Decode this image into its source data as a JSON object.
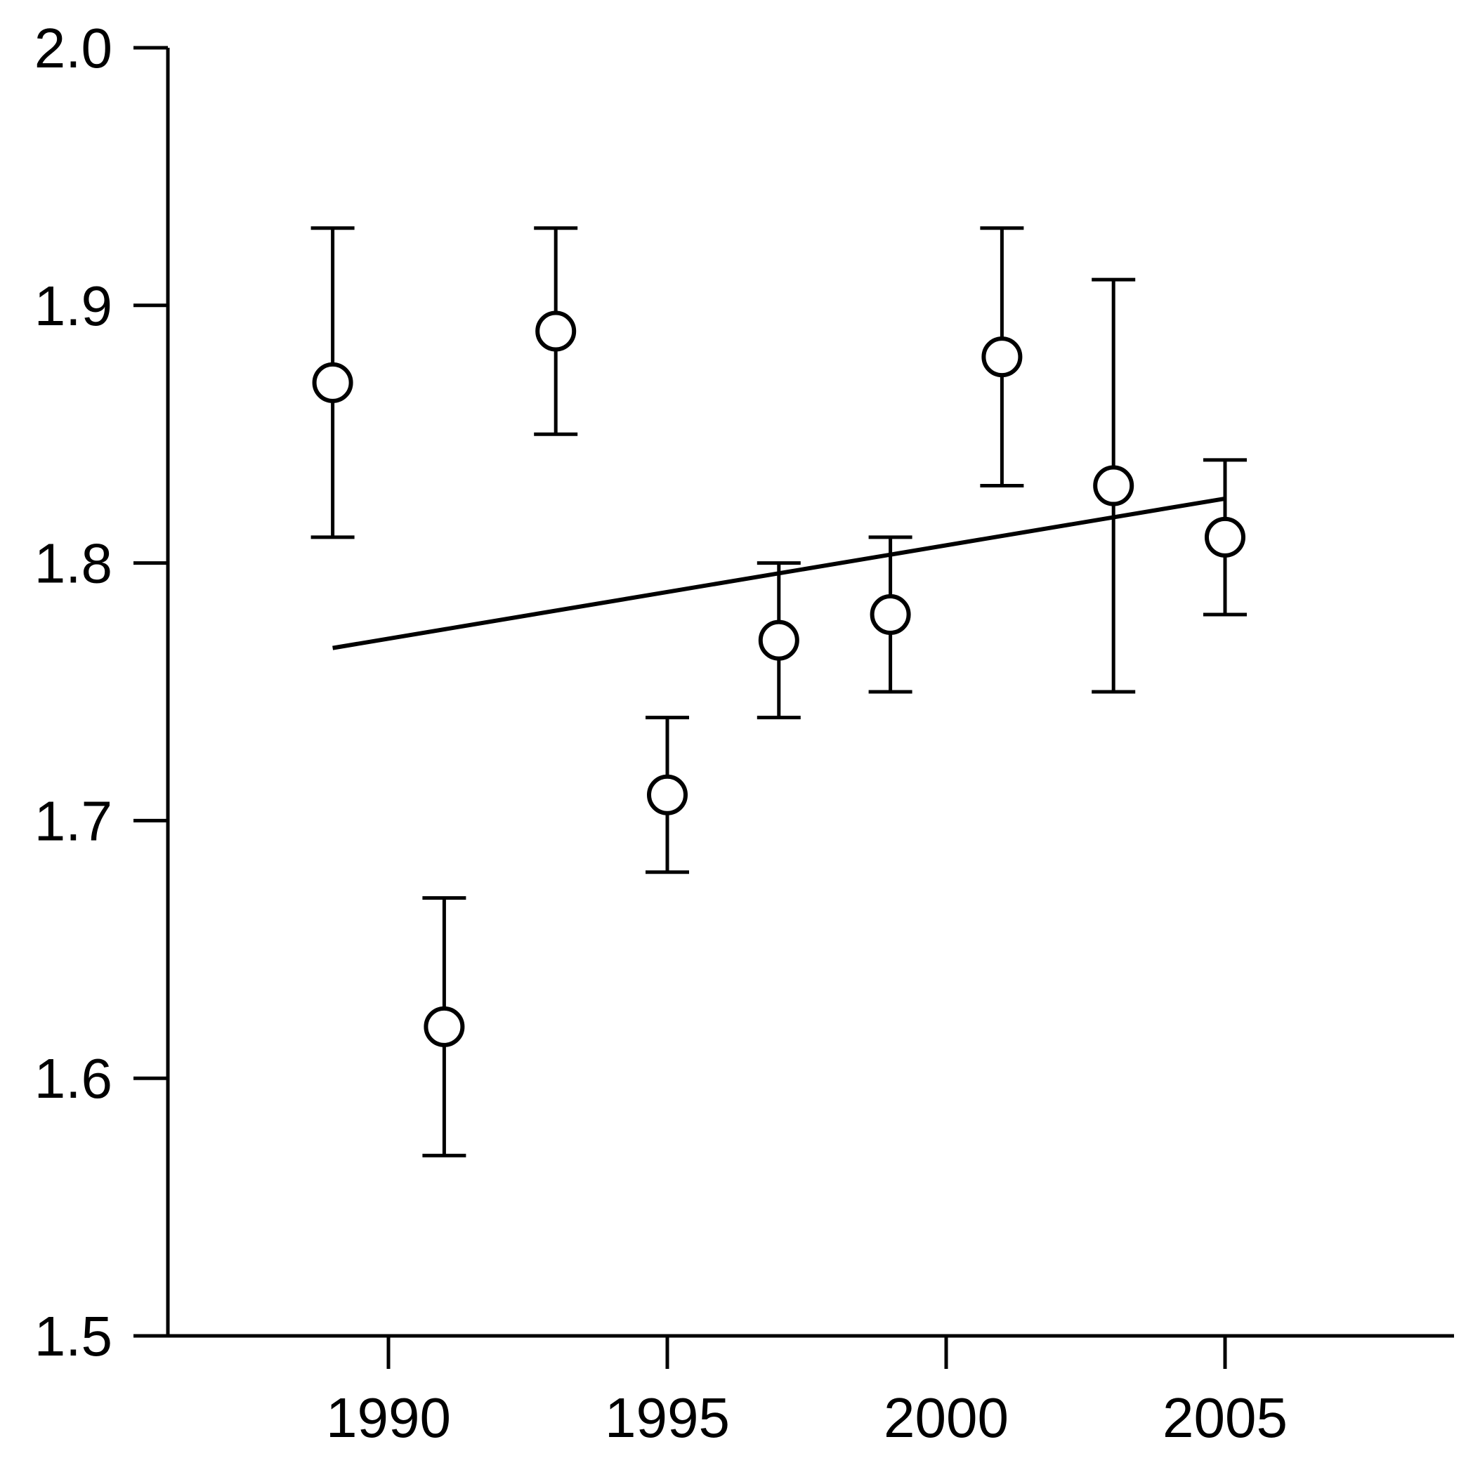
{
  "chart_data": {
    "type": "scatter",
    "title": "",
    "xlabel": "",
    "ylabel": "",
    "xlim": [
      1986,
      2009
    ],
    "ylim": [
      1.5,
      2.0
    ],
    "x_ticks": [
      1990,
      1995,
      2000,
      2005
    ],
    "x_tick_labels": [
      "1990",
      "1995",
      "2000",
      "2005"
    ],
    "y_ticks": [
      1.5,
      1.6,
      1.7,
      1.8,
      1.9,
      2.0
    ],
    "y_tick_labels": [
      "1.5",
      "1.6",
      "1.7",
      "1.8",
      "1.9",
      "2.0"
    ],
    "grid": false,
    "legend": "none",
    "series": [
      {
        "marker": "open-circle",
        "points": [
          {
            "x": 1989,
            "y": 1.87,
            "y_low": 1.81,
            "y_high": 1.93
          },
          {
            "x": 1991,
            "y": 1.62,
            "y_low": 1.57,
            "y_high": 1.67
          },
          {
            "x": 1993,
            "y": 1.89,
            "y_low": 1.85,
            "y_high": 1.93
          },
          {
            "x": 1995,
            "y": 1.71,
            "y_low": 1.68,
            "y_high": 1.74
          },
          {
            "x": 1997,
            "y": 1.77,
            "y_low": 1.74,
            "y_high": 1.8
          },
          {
            "x": 1999,
            "y": 1.78,
            "y_low": 1.75,
            "y_high": 1.81
          },
          {
            "x": 2001,
            "y": 1.88,
            "y_low": 1.83,
            "y_high": 1.93
          },
          {
            "x": 2003,
            "y": 1.83,
            "y_low": 1.75,
            "y_high": 1.91
          },
          {
            "x": 2005,
            "y": 1.81,
            "y_low": 1.78,
            "y_high": 1.84
          }
        ]
      }
    ],
    "trend_line": {
      "x": [
        1989,
        2005
      ],
      "y": [
        1.767,
        1.825
      ]
    },
    "colors": {
      "ink": "#000000",
      "background": "#ffffff"
    }
  }
}
